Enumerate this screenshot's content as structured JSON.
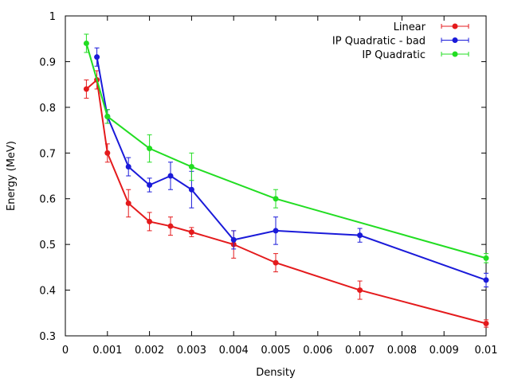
{
  "chart_data": {
    "type": "line",
    "title": "",
    "xlabel": "Density",
    "ylabel": "Energy (MeV)",
    "xlim": [
      0,
      0.01
    ],
    "ylim": [
      0.3,
      1.0
    ],
    "xticks": [
      "0",
      "0.001",
      "0.002",
      "0.003",
      "0.004",
      "0.005",
      "0.006",
      "0.007",
      "0.008",
      "0.009",
      "0.01"
    ],
    "yticks": [
      "0.3",
      "0.4",
      "0.5",
      "0.6",
      "0.7",
      "0.8",
      "0.9",
      "1"
    ],
    "grid": false,
    "legend_position": "top-right",
    "series": [
      {
        "name": "Linear",
        "color": "#e41a1c",
        "x": [
          0.0005,
          0.00075,
          0.001,
          0.0015,
          0.002,
          0.0025,
          0.003,
          0.004,
          0.005,
          0.007,
          0.01
        ],
        "y": [
          0.84,
          0.86,
          0.7,
          0.59,
          0.55,
          0.54,
          0.527,
          0.5,
          0.46,
          0.4,
          0.327
        ],
        "err": [
          0.02,
          0.02,
          0.02,
          0.03,
          0.02,
          0.02,
          0.01,
          0.03,
          0.02,
          0.02,
          0.008
        ]
      },
      {
        "name": "IP Quadratic - bad",
        "color": "#1a1ad9",
        "x": [
          0.00075,
          0.001,
          0.0015,
          0.002,
          0.0025,
          0.003,
          0.004,
          0.005,
          0.007,
          0.01
        ],
        "y": [
          0.91,
          0.78,
          0.67,
          0.63,
          0.65,
          0.62,
          0.51,
          0.53,
          0.52,
          0.422
        ],
        "err": [
          0.02,
          0.015,
          0.02,
          0.015,
          0.03,
          0.04,
          0.02,
          0.03,
          0.015,
          0.015
        ]
      },
      {
        "name": "IP Quadratic",
        "color": "#22dd22",
        "x": [
          0.0005,
          0.001,
          0.002,
          0.003,
          0.005,
          0.01
        ],
        "y": [
          0.94,
          0.78,
          0.71,
          0.67,
          0.6,
          0.47
        ],
        "err": [
          0.02,
          0.015,
          0.03,
          0.03,
          0.02,
          0.01
        ]
      }
    ]
  }
}
